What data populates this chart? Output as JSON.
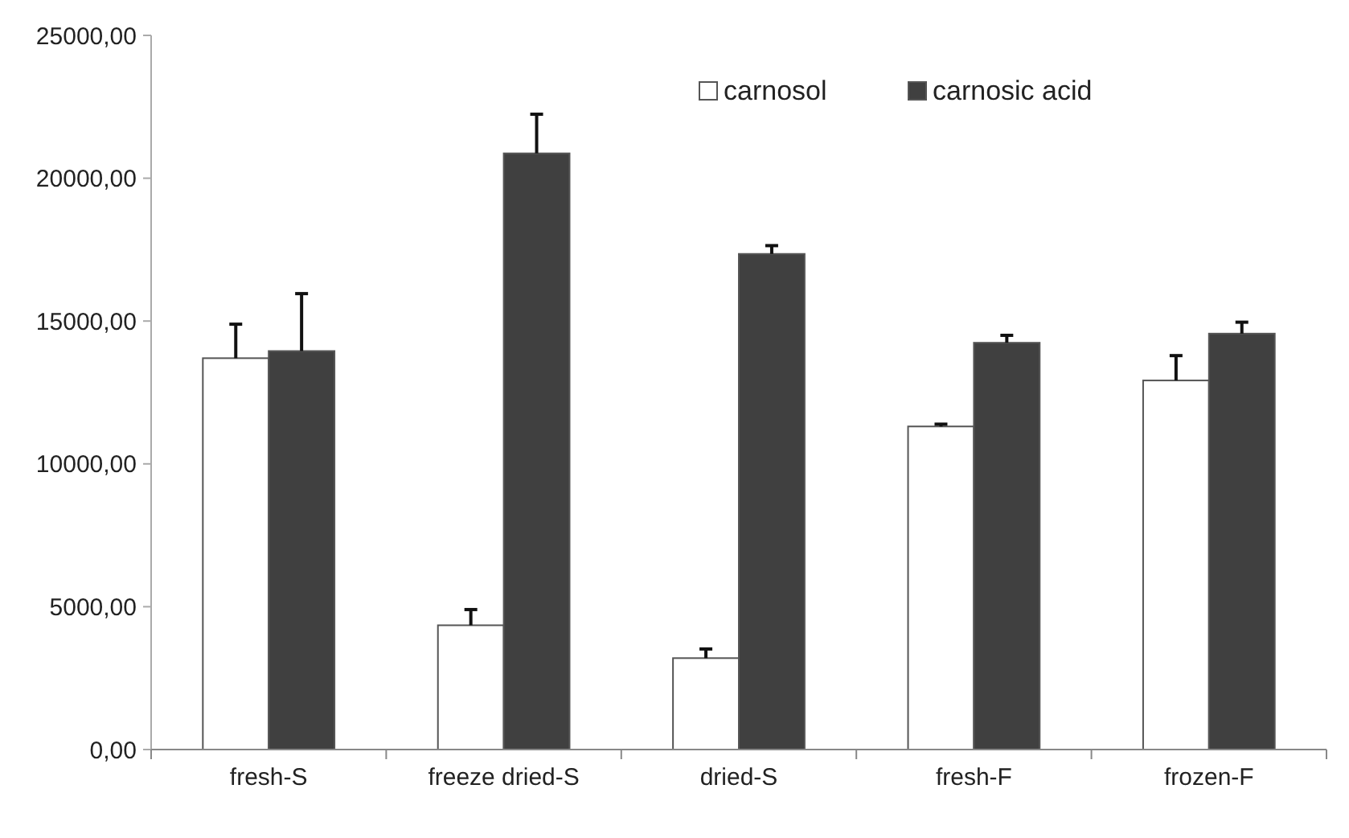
{
  "chart_data": {
    "type": "bar",
    "categories": [
      "fresh-S",
      "freeze dried-S",
      "dried-S",
      "fresh-F",
      "frozen-F"
    ],
    "series": [
      {
        "name": "carnosol",
        "color": "#ffffff",
        "values": [
          13700,
          4350,
          3200,
          11310,
          12920
        ],
        "errors": [
          [
            13700,
            14890
          ],
          [
            4350,
            4900
          ],
          [
            3200,
            3520
          ],
          [
            11310,
            11390
          ],
          [
            12920,
            13790
          ]
        ]
      },
      {
        "name": "carnosic acid",
        "color": "#404040",
        "values": [
          13950,
          20870,
          17350,
          14240,
          14560
        ],
        "errors": [
          [
            13950,
            15960
          ],
          [
            20870,
            22240
          ],
          [
            17350,
            17640
          ],
          [
            14240,
            14500
          ],
          [
            14560,
            14960
          ]
        ]
      }
    ],
    "ylim": [
      0,
      25000
    ],
    "yticks": [
      {
        "value": 0,
        "label": "0,00"
      },
      {
        "value": 5000,
        "label": "5000,00"
      },
      {
        "value": 10000,
        "label": "10000,00"
      },
      {
        "value": 15000,
        "label": "15000,00"
      },
      {
        "value": 20000,
        "label": "20000,00"
      },
      {
        "value": 25000,
        "label": "25000,00"
      }
    ],
    "grid": false,
    "legend": "top"
  }
}
